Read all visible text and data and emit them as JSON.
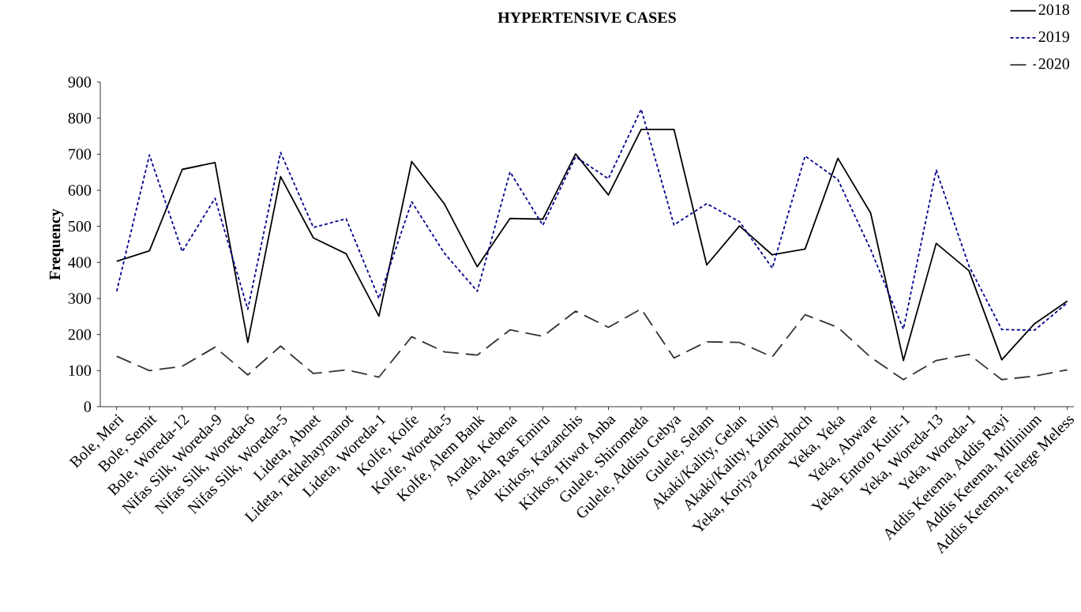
{
  "chart_data": {
    "type": "line",
    "title": "HYPERTENSIVE CASES",
    "ylabel": "Frequency",
    "categories": [
      "Bole, Meri",
      "Bole, Semit",
      "Bole, Woreda-12",
      "Nifas Silk, Woreda-9",
      "Nifas Silk, Woreda-6",
      "Nifas Silk, Woreda-5",
      "Lideta, Abnet",
      "Lideta, Teklehaymanot",
      "Lideta, Woreda-1",
      "Kolfe, Kolfe",
      "Kolfe, Woreda-5",
      "Kolfe, Alem Bank",
      "Arada, Kebena",
      "Arada, Ras Emiru",
      "Kirkos, Kazanchis",
      "Kirkos, Hiwot Anba",
      "Gulele, Shiromeda",
      "Gulele, Addisu Gebya",
      "Gulele, Selam",
      "Akaki/Kality, Gelan",
      "Akaki/Kality, Kality",
      "Yeka, Koriya Zemachoch",
      "Yeka, Yeka",
      "Yeka, Abware",
      "Yeka, Entoto Kutir-1",
      "Yeka, Woreda-13",
      "Yeka, Woreda-1",
      "Addis Ketema, Addis Rayi",
      "Addis Ketema, Milinium",
      "Addis Ketema, Felege Meless"
    ],
    "series": [
      {
        "name": "2018",
        "color": "#000000",
        "line_style": "solid",
        "values": [
          403,
          432,
          658,
          677,
          178,
          638,
          468,
          424,
          251,
          680,
          562,
          388,
          522,
          520,
          701,
          587,
          769,
          769,
          393,
          501,
          421,
          437,
          689,
          537,
          128,
          453,
          377,
          130,
          230,
          293
        ]
      },
      {
        "name": "2019",
        "color": "#00008b",
        "line_style": "dotted",
        "values": [
          320,
          698,
          430,
          578,
          270,
          705,
          497,
          521,
          300,
          568,
          425,
          320,
          651,
          503,
          693,
          632,
          825,
          504,
          563,
          513,
          384,
          695,
          630,
          436,
          215,
          656,
          390,
          214,
          212,
          288
        ]
      },
      {
        "name": "2020",
        "color": "#333333",
        "line_style": "dashed",
        "values": [
          140,
          100,
          112,
          165,
          88,
          168,
          92,
          102,
          82,
          194,
          152,
          143,
          213,
          195,
          265,
          220,
          271,
          135,
          180,
          178,
          138,
          255,
          220,
          137,
          75,
          128,
          145,
          75,
          85,
          102
        ]
      }
    ],
    "ylim": [
      0,
      900
    ],
    "yticks": [
      0,
      100,
      200,
      300,
      400,
      500,
      600,
      700,
      800,
      900
    ],
    "grid": false,
    "legend": "top right",
    "marker": "none"
  }
}
